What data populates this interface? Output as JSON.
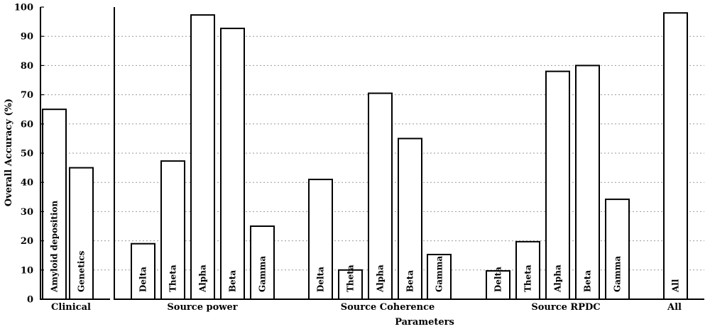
{
  "chart_data": {
    "type": "bar",
    "xlabel": "Parameters",
    "ylabel": "Overall Accuracy (%)",
    "ylim": [
      0,
      100
    ],
    "yticks": [
      0,
      10,
      20,
      30,
      40,
      50,
      60,
      70,
      80,
      90,
      100
    ],
    "grid": "horizontal dotted",
    "groups": [
      {
        "name": "Clinical",
        "bars": [
          {
            "label": "Amyloid  deposition",
            "value": 65
          },
          {
            "label": "Genetics",
            "value": 45
          }
        ]
      },
      {
        "name": "Source power",
        "bars": [
          {
            "label": "Delta",
            "value": 19
          },
          {
            "label": "Theta",
            "value": 47.3
          },
          {
            "label": "Alpha",
            "value": 97.3
          },
          {
            "label": "Beta",
            "value": 92.7
          },
          {
            "label": "Gamma",
            "value": 25
          }
        ]
      },
      {
        "name": "Source Coherence",
        "bars": [
          {
            "label": "Delta",
            "value": 41
          },
          {
            "label": "Theta",
            "value": 10
          },
          {
            "label": "Alpha",
            "value": 70.5
          },
          {
            "label": "Beta",
            "value": 55
          },
          {
            "label": "Gamma",
            "value": 15.3
          }
        ]
      },
      {
        "name": "Source RPDC",
        "bars": [
          {
            "label": "Delta",
            "value": 9.7
          },
          {
            "label": "Theta",
            "value": 19.7
          },
          {
            "label": "Alpha",
            "value": 78
          },
          {
            "label": "Beta",
            "value": 80
          },
          {
            "label": "Gamma",
            "value": 34.2
          }
        ]
      },
      {
        "name": "All",
        "bars": [
          {
            "label": "All",
            "value": 98
          }
        ]
      }
    ]
  }
}
